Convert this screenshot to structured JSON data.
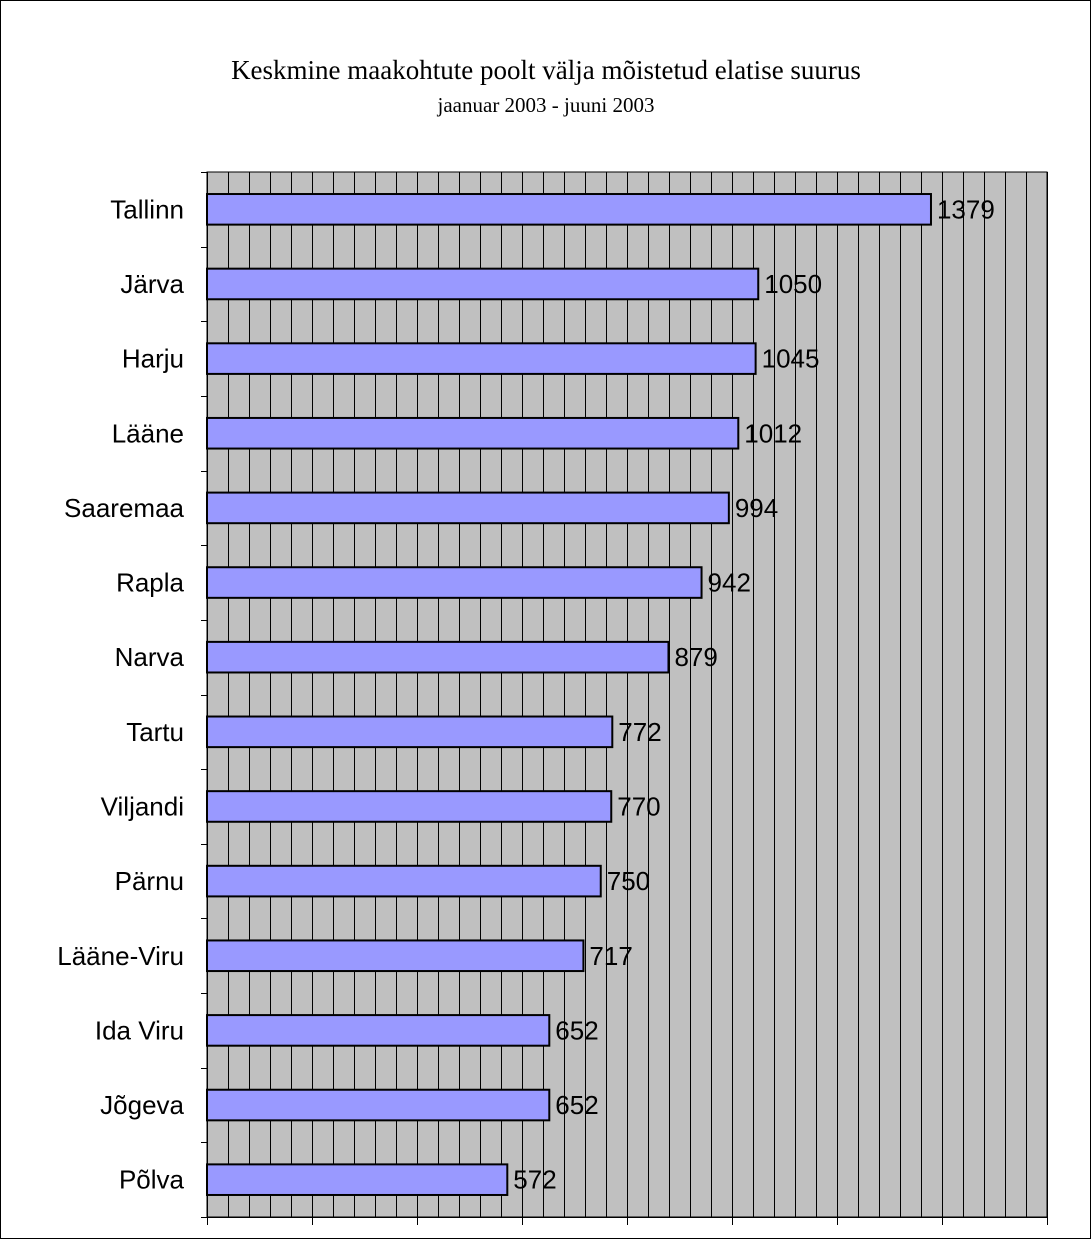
{
  "chart_data": {
    "type": "bar",
    "orientation": "horizontal",
    "title": "Keskmine maakohtute poolt välja mõistetud elatise suurus",
    "subtitle": "jaanuar 2003 - juuni 2003",
    "categories": [
      "Tallinn",
      "Järva",
      "Harju",
      "Lääne",
      "Saaremaa",
      "Rapla",
      "Narva",
      "Tartu",
      "Viljandi",
      "Pärnu",
      "Lääne-Viru",
      "Ida Viru",
      "Jõgeva",
      "Põlva"
    ],
    "values": [
      1379,
      1050,
      1045,
      1012,
      994,
      942,
      879,
      772,
      770,
      750,
      717,
      652,
      652,
      572
    ],
    "xlim": [
      0,
      1600
    ],
    "x_ticks": [
      0,
      200,
      400,
      600,
      800,
      1000,
      1200,
      1400,
      1600
    ],
    "x_minor_step": 40,
    "grid": true,
    "legend": "none",
    "colors": {
      "bar_fill": "#9999ff",
      "bar_stroke": "#000000",
      "plot_background": "#c0c0c0",
      "gridline": "#000000"
    }
  }
}
